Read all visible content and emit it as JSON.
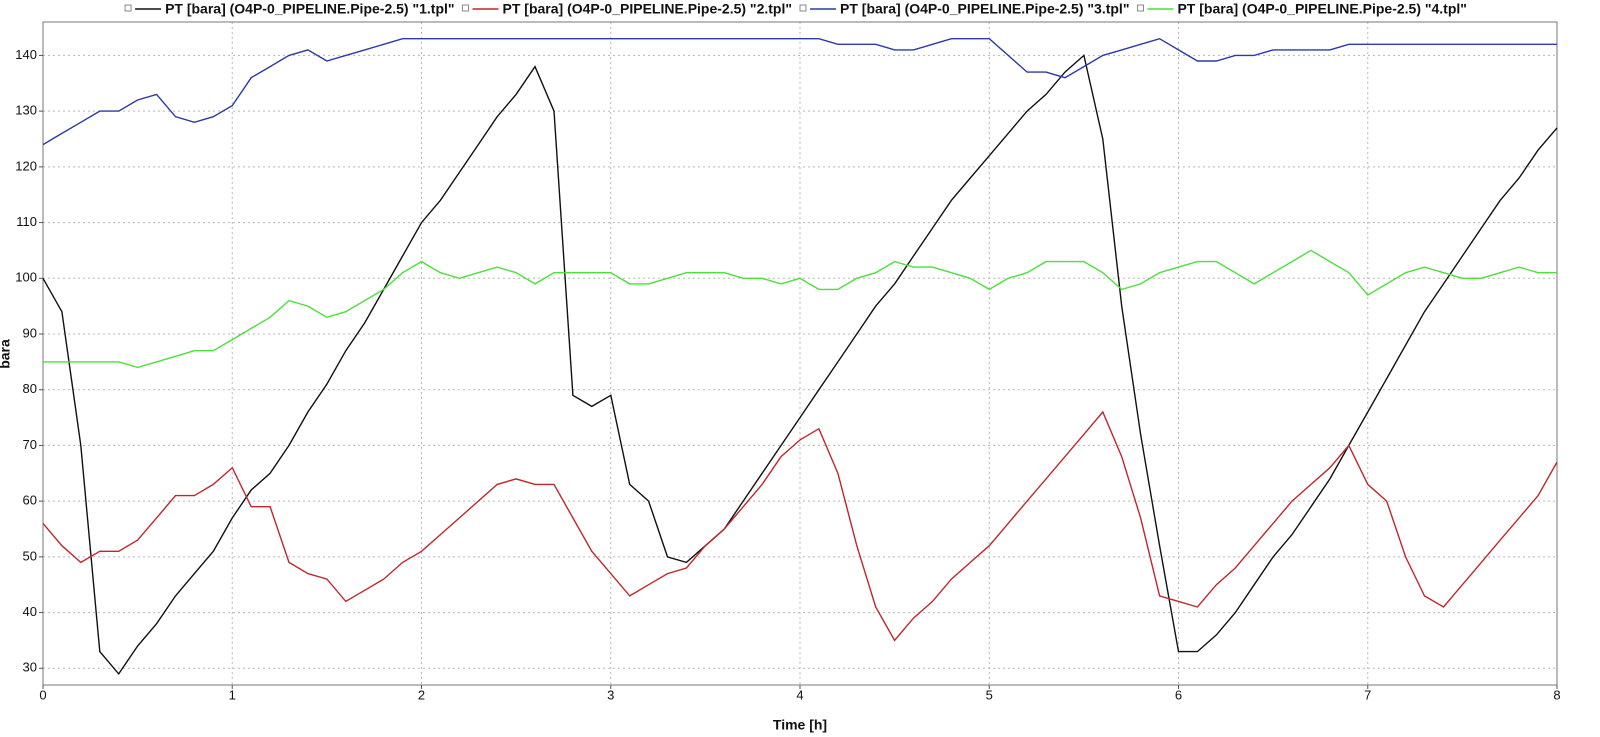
{
  "chart_data": {
    "type": "line",
    "x_label": "Time [h]",
    "y_label": "bara",
    "x": [
      0,
      0.1,
      0.2,
      0.3,
      0.4,
      0.5,
      0.6,
      0.7,
      0.8,
      0.9,
      1,
      1.1,
      1.2,
      1.3,
      1.4,
      1.5,
      1.6,
      1.7,
      1.8,
      1.9,
      2,
      2.1,
      2.2,
      2.3,
      2.4,
      2.5,
      2.6,
      2.7,
      2.8,
      2.9,
      3,
      3.1,
      3.2,
      3.3,
      3.4,
      3.5,
      3.6,
      3.7,
      3.8,
      3.9,
      4,
      4.1,
      4.2,
      4.3,
      4.4,
      4.5,
      4.6,
      4.7,
      4.8,
      4.9,
      5,
      5.1,
      5.2,
      5.3,
      5.4,
      5.5,
      5.6,
      5.7,
      5.8,
      5.9,
      6,
      6.1,
      6.2,
      6.3,
      6.4,
      6.5,
      6.6,
      6.7,
      6.8,
      6.9,
      7,
      7.1,
      7.2,
      7.3,
      7.4,
      7.5,
      7.6,
      7.7,
      7.8,
      7.9,
      8
    ],
    "series": [
      {
        "name": "PT [bara] (O4P-0_PIPELINE.Pipe-2.5) \"1.tpl\"",
        "color": "#111111",
        "values": [
          100,
          94,
          70,
          33,
          29,
          34,
          38,
          43,
          47,
          51,
          57,
          62,
          65,
          70,
          76,
          81,
          87,
          92,
          98,
          104,
          110,
          114,
          119,
          124,
          129,
          133,
          138,
          130,
          79,
          77,
          79,
          63,
          60,
          50,
          49,
          52,
          55,
          60,
          65,
          70,
          75,
          80,
          85,
          90,
          95,
          99,
          104,
          109,
          114,
          118,
          122,
          126,
          130,
          133,
          137,
          140,
          125,
          95,
          72,
          52,
          33,
          33,
          36,
          40,
          45,
          50,
          54,
          59,
          64,
          70,
          76,
          82,
          88,
          94,
          99,
          104,
          109,
          114,
          118,
          123,
          127
        ]
      },
      {
        "name": "PT [bara] (O4P-0_PIPELINE.Pipe-2.5) \"2.tpl\"",
        "color": "#c0272d",
        "values": [
          56,
          52,
          49,
          51,
          51,
          53,
          57,
          61,
          61,
          63,
          66,
          59,
          59,
          49,
          47,
          46,
          42,
          44,
          46,
          49,
          51,
          54,
          57,
          60,
          63,
          64,
          63,
          63,
          57,
          51,
          47,
          43,
          45,
          47,
          48,
          52,
          55,
          59,
          63,
          68,
          71,
          73,
          65,
          52,
          41,
          35,
          39,
          42,
          46,
          49,
          52,
          56,
          60,
          64,
          68,
          72,
          76,
          68,
          57,
          43,
          42,
          41,
          45,
          48,
          52,
          56,
          60,
          63,
          66,
          70,
          63,
          60,
          50,
          43,
          41,
          45,
          49,
          53,
          57,
          61,
          67
        ]
      },
      {
        "name": "PT [bara] (O4P-0_PIPELINE.Pipe-2.5) \"3.tpl\"",
        "color": "#2b3aa8",
        "values": [
          124,
          126,
          128,
          130,
          130,
          132,
          133,
          129,
          128,
          129,
          131,
          136,
          138,
          140,
          141,
          139,
          140,
          141,
          142,
          143,
          143,
          143,
          143,
          143,
          143,
          143,
          143,
          143,
          143,
          143,
          143,
          143,
          143,
          143,
          143,
          143,
          143,
          143,
          143,
          143,
          143,
          143,
          142,
          142,
          142,
          141,
          141,
          142,
          143,
          143,
          143,
          140,
          137,
          137,
          136,
          138,
          140,
          141,
          142,
          143,
          141,
          139,
          139,
          140,
          140,
          141,
          141,
          141,
          141,
          142,
          142,
          142,
          142,
          142,
          142,
          142,
          142,
          142,
          142,
          142,
          142
        ]
      },
      {
        "name": "PT [bara] (O4P-0_PIPELINE.Pipe-2.5) \"4.tpl\"",
        "color": "#4be03a",
        "values": [
          85,
          85,
          85,
          85,
          85,
          84,
          85,
          86,
          87,
          87,
          89,
          91,
          93,
          96,
          95,
          93,
          94,
          96,
          98,
          101,
          103,
          101,
          100,
          101,
          102,
          101,
          99,
          101,
          101,
          101,
          101,
          99,
          99,
          100,
          101,
          101,
          101,
          100,
          100,
          99,
          100,
          98,
          98,
          100,
          101,
          103,
          102,
          102,
          101,
          100,
          98,
          100,
          101,
          103,
          103,
          103,
          101,
          98,
          99,
          101,
          102,
          103,
          103,
          101,
          99,
          101,
          103,
          105,
          103,
          101,
          97,
          99,
          101,
          102,
          101,
          100,
          100,
          101,
          102,
          101,
          101
        ]
      }
    ],
    "xlim": [
      0,
      8
    ],
    "xticks": [
      0,
      1,
      2,
      3,
      4,
      5,
      6,
      7,
      8
    ],
    "ylim": [
      27,
      146
    ],
    "yticks": [
      30,
      40,
      50,
      60,
      70,
      80,
      90,
      100,
      110,
      120,
      130,
      140
    ],
    "grid": true,
    "legend": "top"
  }
}
